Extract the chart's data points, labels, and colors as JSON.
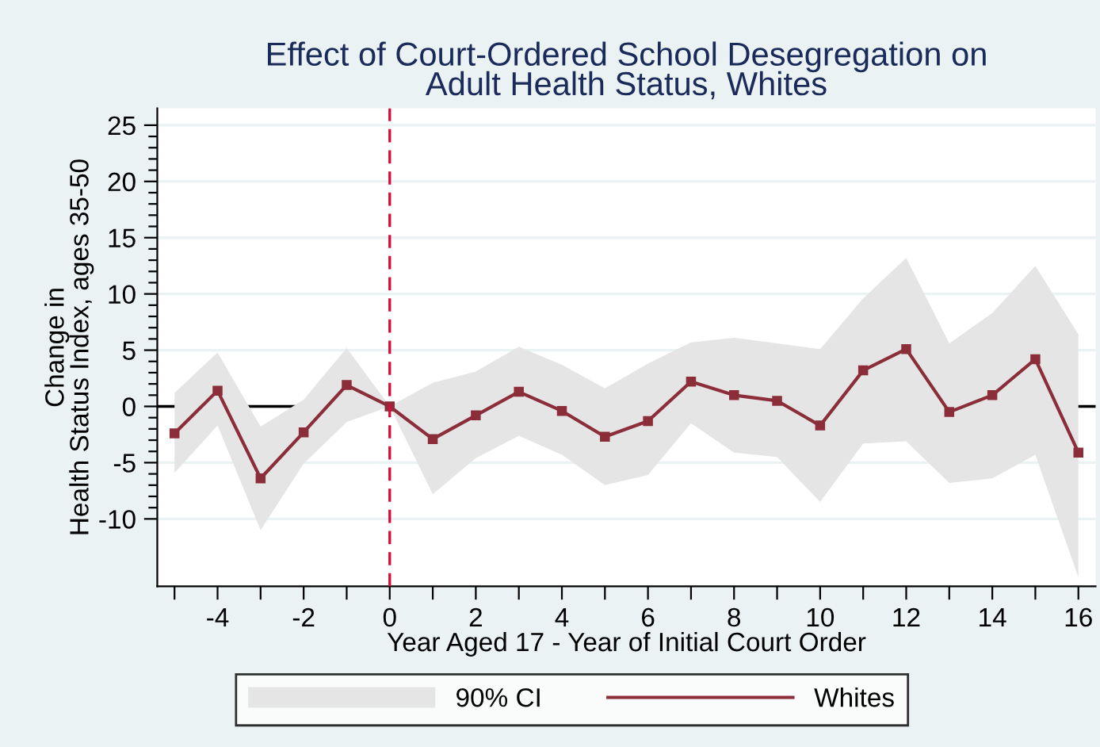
{
  "chart_data": {
    "type": "line",
    "title": "Effect of Court-Ordered School Desegregation on\nAdult Health Status, Whites",
    "xlabel": "Year Aged 17 - Year of Initial Court Order",
    "ylabel": "Change in\nHealth Status Index, ages 35-50",
    "x": [
      -5,
      -4,
      -3,
      -2,
      -1,
      0,
      1,
      2,
      3,
      4,
      5,
      6,
      7,
      8,
      9,
      10,
      11,
      12,
      13,
      14,
      15,
      16
    ],
    "series": [
      {
        "name": "Whites",
        "color": "#8b2e3a",
        "marker": "square",
        "lower": [
          -5.9,
          -1.7,
          -11.0,
          -5.1,
          -1.4,
          0,
          -7.8,
          -4.6,
          -2.6,
          -4.3,
          -7.0,
          -6.1,
          -1.5,
          -4.1,
          -4.5,
          -8.5,
          -3.3,
          -3.1,
          -6.8,
          -6.4,
          -4.3,
          -15.2
        ],
        "upper": [
          1.2,
          4.8,
          -1.8,
          0.6,
          5.2,
          0,
          2.1,
          3.1,
          5.3,
          3.7,
          1.6,
          3.8,
          5.7,
          6.1,
          5.6,
          5.1,
          9.6,
          13.2,
          5.6,
          8.3,
          12.5,
          6.4
        ],
        "values": [
          -2.4,
          1.4,
          -6.4,
          -2.3,
          1.9,
          0,
          -2.9,
          -0.8,
          1.3,
          -0.4,
          -2.7,
          -1.3,
          2.2,
          1.0,
          0.5,
          -1.7,
          3.2,
          5.1,
          -0.5,
          1.0,
          4.2,
          -4.1
        ]
      }
    ],
    "xlim": [
      -5.4,
      16.4
    ],
    "ylim": [
      -16,
      26.5
    ],
    "xticks": [
      {
        "value": -5,
        "label": null
      },
      -4,
      {
        "value": -3,
        "label": null
      },
      -2,
      {
        "value": -1,
        "label": null
      },
      0,
      {
        "value": 1,
        "label": null
      },
      2,
      {
        "value": 3,
        "label": null
      },
      4,
      {
        "value": 5,
        "label": null
      },
      6,
      {
        "value": 7,
        "label": null
      },
      8,
      {
        "value": 9,
        "label": null
      },
      10,
      {
        "value": 11,
        "label": null
      },
      12,
      {
        "value": 13,
        "label": null
      },
      14,
      {
        "value": 15,
        "label": null
      },
      16
    ],
    "yticks": [
      -10,
      {
        "value": -9,
        "label": null
      },
      {
        "value": -8,
        "label": null
      },
      {
        "value": -7,
        "label": null
      },
      {
        "value": -6,
        "label": null
      },
      -5,
      {
        "value": -4,
        "label": null
      },
      {
        "value": -3,
        "label": null
      },
      {
        "value": -2,
        "label": null
      },
      {
        "value": -1,
        "label": null
      },
      0,
      {
        "value": 1,
        "label": null
      },
      {
        "value": 2,
        "label": null
      },
      {
        "value": 3,
        "label": null
      },
      {
        "value": 4,
        "label": null
      },
      5,
      {
        "value": 6,
        "label": null
      },
      {
        "value": 7,
        "label": null
      },
      {
        "value": 8,
        "label": null
      },
      {
        "value": 9,
        "label": null
      },
      10,
      {
        "value": 11,
        "label": null
      },
      {
        "value": 12,
        "label": null
      },
      {
        "value": 13,
        "label": null
      },
      {
        "value": 14,
        "label": null
      },
      15,
      {
        "value": 16,
        "label": null
      },
      {
        "value": 17,
        "label": null
      },
      {
        "value": 18,
        "label": null
      },
      {
        "value": 19,
        "label": null
      },
      20,
      {
        "value": 21,
        "label": null
      },
      {
        "value": 22,
        "label": null
      },
      {
        "value": 23,
        "label": null
      },
      {
        "value": 24,
        "label": null
      },
      25
    ],
    "ref_lines": [
      {
        "axis": "y",
        "value": 0,
        "color": "#000000",
        "line_style": "solid"
      },
      {
        "axis": "x",
        "value": 0,
        "color": "#d0103a",
        "line_style": "dashed"
      }
    ],
    "annotations": [
      "90% CI"
    ],
    "grid": "y",
    "legend": "bottom",
    "line_style": "solid"
  }
}
